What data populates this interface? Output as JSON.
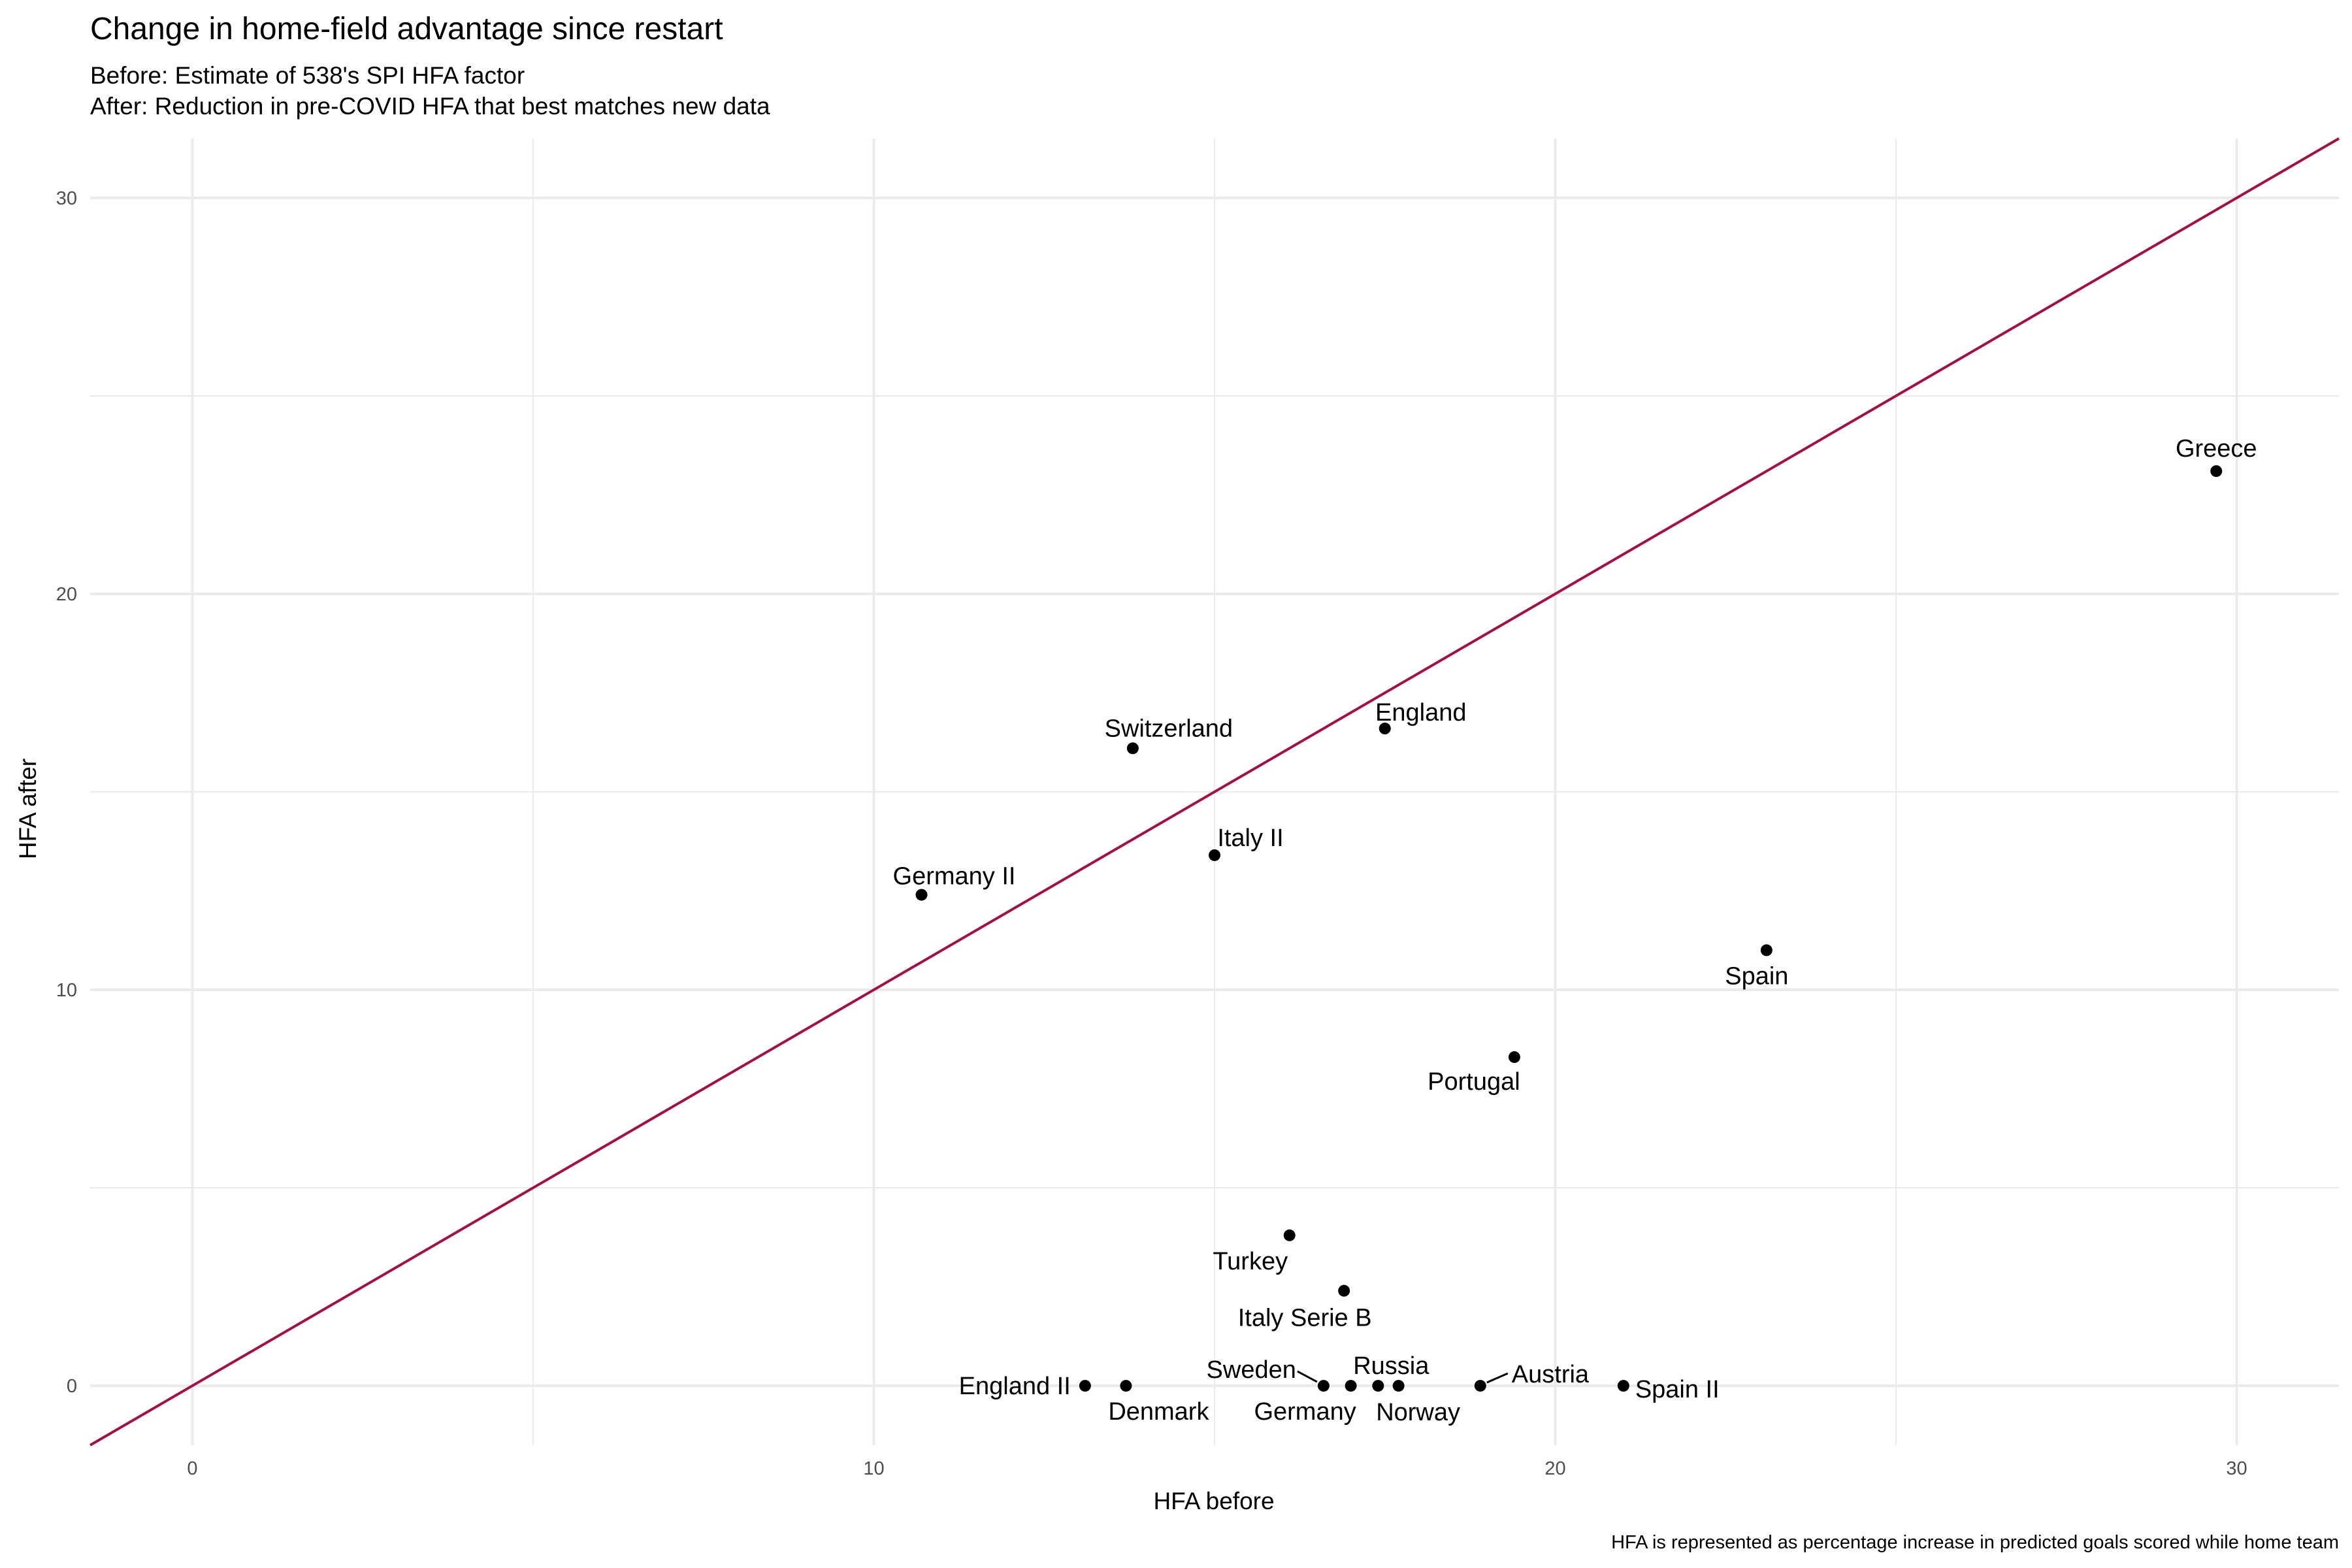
{
  "chart_data": {
    "type": "scatter",
    "title": "Change in home-field advantage since restart",
    "subtitle_lines": [
      "Before: Estimate of 538's SPI HFA factor",
      "After: Reduction in pre-COVID HFA that best matches new data"
    ],
    "xlabel": "HFA before",
    "ylabel": "HFA after",
    "caption": "HFA is represented as percentage increase in predicted goals scored while home team",
    "xlim": [
      -1.5,
      31.5
    ],
    "ylim": [
      -1.5,
      31.5
    ],
    "x_ticks": [
      0,
      10,
      20,
      30
    ],
    "y_ticks": [
      0,
      10,
      20,
      30
    ],
    "x_tick_labels": [
      "0",
      "10",
      "20",
      "30"
    ],
    "y_tick_labels": [
      "0",
      "10",
      "20",
      "30"
    ],
    "reference_line": "y = x",
    "colors": {
      "reference_line": "#a50f46",
      "points": "#000000",
      "grid": "#ebebeb"
    },
    "points": [
      {
        "label": "Greece",
        "x": 29.7,
        "y": 23.1
      },
      {
        "label": "England",
        "x": 17.5,
        "y": 16.6
      },
      {
        "label": "Switzerland",
        "x": 13.8,
        "y": 16.1
      },
      {
        "label": "Italy II",
        "x": 15.0,
        "y": 13.4
      },
      {
        "label": "Germany II",
        "x": 10.7,
        "y": 12.4
      },
      {
        "label": "Spain",
        "x": 23.1,
        "y": 11.0
      },
      {
        "label": "Portugal",
        "x": 19.4,
        "y": 8.3
      },
      {
        "label": "Turkey",
        "x": 16.1,
        "y": 3.8
      },
      {
        "label": "Italy Serie B",
        "x": 16.9,
        "y": 2.4
      },
      {
        "label": "England II",
        "x": 13.1,
        "y": 0.0
      },
      {
        "label": "Denmark",
        "x": 13.7,
        "y": 0.0
      },
      {
        "label": "Sweden",
        "x": 16.6,
        "y": 0.0
      },
      {
        "label": "Germany",
        "x": 17.0,
        "y": 0.0
      },
      {
        "label": "Russia",
        "x": 17.4,
        "y": 0.0
      },
      {
        "label": "Norway",
        "x": 17.7,
        "y": 0.0
      },
      {
        "label": "Austria",
        "x": 18.9,
        "y": 0.0
      },
      {
        "label": "Spain II",
        "x": 21.0,
        "y": 0.0
      }
    ]
  }
}
